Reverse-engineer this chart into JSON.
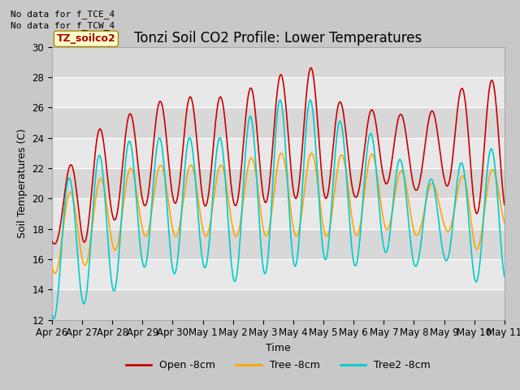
{
  "title": "Tonzi Soil CO2 Profile: Lower Temperatures",
  "xlabel": "Time",
  "ylabel": "Soil Temperatures (C)",
  "ylim": [
    12,
    30
  ],
  "annotations": [
    "No data for f_TCE_4",
    "No data for f_TCW_4"
  ],
  "legend_label": "TZ_soilco2",
  "series_labels": [
    "Open -8cm",
    "Tree -8cm",
    "Tree2 -8cm"
  ],
  "series_colors": [
    "#cc0000",
    "#ffa500",
    "#00cccc"
  ],
  "x_tick_labels": [
    "Apr 26",
    "Apr 27",
    "Apr 28",
    "Apr 29",
    "Apr 30",
    "May 1",
    "May 2",
    "May 3",
    "May 4",
    "May 5",
    "May 6",
    "May 7",
    "May 8",
    "May 9",
    "May 10",
    "May 11"
  ],
  "title_fontsize": 12,
  "axis_fontsize": 9,
  "tick_fontsize": 8.5,
  "fig_bg": "#c8c8c8",
  "plot_bg": "#e8e8e8",
  "grid_color": "#ffffff",
  "band_color": "#d8d8d8"
}
